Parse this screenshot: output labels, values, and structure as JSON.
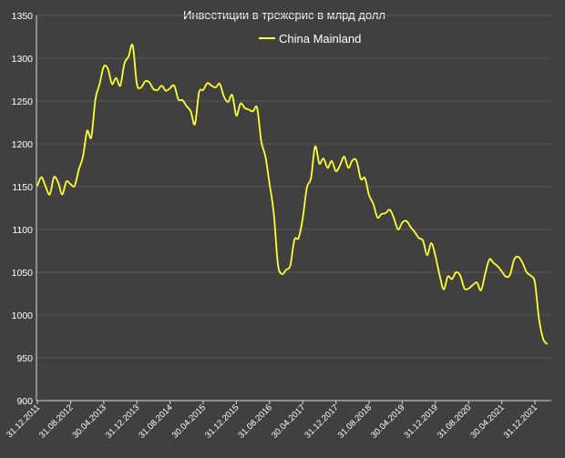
{
  "chart_data": {
    "type": "line",
    "title": "Инвестиции в трежерис в млрд долл",
    "xlabel": "",
    "ylabel": "",
    "ylim": [
      900,
      1350
    ],
    "yticks": [
      900,
      950,
      1000,
      1050,
      1100,
      1150,
      1200,
      1250,
      1300,
      1350
    ],
    "xticks": [
      "31.12.2011",
      "31.08.2012",
      "30.04.2013",
      "31.12.2013",
      "31.08.2014",
      "30.04.2015",
      "31.12.2015",
      "31.08.2016",
      "30.04.2017",
      "31.12.2017",
      "31.08.2018",
      "30.04.2019",
      "31.12.2019",
      "31.08.2020",
      "30.04.2021",
      "31.12.2021"
    ],
    "grid": true,
    "legend": "top-center",
    "colors": {
      "background": "#404040",
      "grid": "#595959",
      "axis": "#d9d9d9",
      "text": "#ffffff",
      "series": "#ffff33"
    },
    "series": [
      {
        "name": "China Mainland",
        "color": "#ffff33",
        "points": [
          [
            "12.2011",
            1151
          ],
          [
            "01.2012",
            1161
          ],
          [
            "02.2012",
            1150
          ],
          [
            "03.2012",
            1141
          ],
          [
            "04.2012",
            1161
          ],
          [
            "05.2012",
            1155
          ],
          [
            "06.2012",
            1141
          ],
          [
            "07.2012",
            1156
          ],
          [
            "08.2012",
            1153
          ],
          [
            "09.2012",
            1151
          ],
          [
            "10.2012",
            1170
          ],
          [
            "11.2012",
            1185
          ],
          [
            "12.2012",
            1215
          ],
          [
            "01.2013",
            1208
          ],
          [
            "02.2013",
            1252
          ],
          [
            "03.2013",
            1270
          ],
          [
            "04.2013",
            1290
          ],
          [
            "05.2013",
            1288
          ],
          [
            "06.2013",
            1270
          ],
          [
            "07.2013",
            1277
          ],
          [
            "08.2013",
            1268
          ],
          [
            "09.2013",
            1294
          ],
          [
            "10.2013",
            1302
          ],
          [
            "11.2013",
            1315
          ],
          [
            "12.2013",
            1270
          ],
          [
            "01.2014",
            1266
          ],
          [
            "02.2014",
            1273
          ],
          [
            "03.2014",
            1272
          ],
          [
            "04.2014",
            1264
          ],
          [
            "05.2014",
            1263
          ],
          [
            "06.2014",
            1268
          ],
          [
            "07.2014",
            1262
          ],
          [
            "08.2014",
            1265
          ],
          [
            "09.2014",
            1268
          ],
          [
            "10.2014",
            1252
          ],
          [
            "11.2014",
            1251
          ],
          [
            "12.2014",
            1244
          ],
          [
            "01.2015",
            1238
          ],
          [
            "02.2015",
            1223
          ],
          [
            "03.2015",
            1260
          ],
          [
            "04.2015",
            1263
          ],
          [
            "05.2015",
            1271
          ],
          [
            "06.2015",
            1268
          ],
          [
            "07.2015",
            1266
          ],
          [
            "08.2015",
            1270
          ],
          [
            "09.2015",
            1255
          ],
          [
            "10.2015",
            1249
          ],
          [
            "11.2015",
            1257
          ],
          [
            "12.2015",
            1233
          ],
          [
            "01.2016",
            1247
          ],
          [
            "02.2016",
            1242
          ],
          [
            "03.2016",
            1240
          ],
          [
            "04.2016",
            1238
          ],
          [
            "05.2016",
            1242
          ],
          [
            "06.2016",
            1203
          ],
          [
            "07.2016",
            1185
          ],
          [
            "08.2016",
            1153
          ],
          [
            "09.2016",
            1120
          ],
          [
            "10.2016",
            1060
          ],
          [
            "11.2016",
            1048
          ],
          [
            "12.2016",
            1053
          ],
          [
            "01.2017",
            1058
          ],
          [
            "02.2017",
            1088
          ],
          [
            "03.2017",
            1090
          ],
          [
            "04.2017",
            1113
          ],
          [
            "05.2017",
            1149
          ],
          [
            "06.2017",
            1160
          ],
          [
            "07.2017",
            1197
          ],
          [
            "08.2017",
            1177
          ],
          [
            "09.2017",
            1183
          ],
          [
            "10.2017",
            1172
          ],
          [
            "11.2017",
            1180
          ],
          [
            "12.2017",
            1168
          ],
          [
            "01.2018",
            1175
          ],
          [
            "02.2018",
            1185
          ],
          [
            "03.2018",
            1172
          ],
          [
            "04.2018",
            1181
          ],
          [
            "05.2018",
            1180
          ],
          [
            "06.2018",
            1159
          ],
          [
            "07.2018",
            1160
          ],
          [
            "08.2018",
            1140
          ],
          [
            "09.2018",
            1130
          ],
          [
            "10.2018",
            1114
          ],
          [
            "11.2018",
            1118
          ],
          [
            "12.2018",
            1119
          ],
          [
            "01.2019",
            1123
          ],
          [
            "02.2019",
            1113
          ],
          [
            "03.2019",
            1100
          ],
          [
            "04.2019",
            1108
          ],
          [
            "05.2019",
            1110
          ],
          [
            "06.2019",
            1103
          ],
          [
            "07.2019",
            1097
          ],
          [
            "08.2019",
            1090
          ],
          [
            "09.2019",
            1087
          ],
          [
            "10.2019",
            1070
          ],
          [
            "11.2019",
            1084
          ],
          [
            "12.2019",
            1069
          ],
          [
            "01.2020",
            1047
          ],
          [
            "02.2020",
            1030
          ],
          [
            "03.2020",
            1045
          ],
          [
            "04.2020",
            1042
          ],
          [
            "05.2020",
            1050
          ],
          [
            "06.2020",
            1046
          ],
          [
            "07.2020",
            1031
          ],
          [
            "08.2020",
            1031
          ],
          [
            "09.2020",
            1035
          ],
          [
            "10.2020",
            1038
          ],
          [
            "11.2020",
            1029
          ],
          [
            "12.2020",
            1048
          ],
          [
            "01.2021",
            1065
          ],
          [
            "02.2021",
            1061
          ],
          [
            "03.2021",
            1057
          ],
          [
            "04.2021",
            1051
          ],
          [
            "05.2021",
            1045
          ],
          [
            "06.2021",
            1047
          ],
          [
            "07.2021",
            1065
          ],
          [
            "08.2021",
            1068
          ],
          [
            "09.2021",
            1061
          ],
          [
            "10.2021",
            1050
          ],
          [
            "11.2021",
            1046
          ],
          [
            "12.2021",
            1038
          ],
          [
            "01.2022",
            995
          ],
          [
            "02.2022",
            972
          ],
          [
            "03.2022",
            966
          ]
        ]
      }
    ]
  }
}
